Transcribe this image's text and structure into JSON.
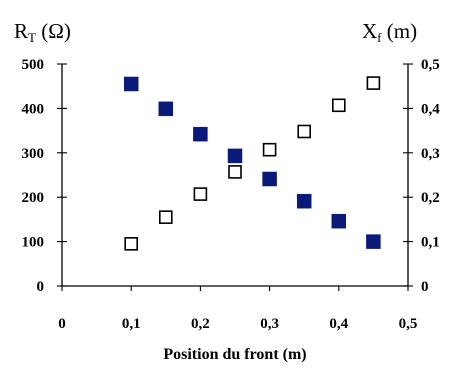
{
  "chart_data": {
    "type": "scatter",
    "title": "",
    "xlabel": "Position du front (m)",
    "ylabel_left": {
      "main": "R",
      "sub": "T",
      "unit": " (Ω)"
    },
    "ylabel_right": {
      "main": "X",
      "sub": "f",
      "unit": " (m)"
    },
    "xlim": [
      0,
      0.5
    ],
    "ylim_left": [
      0,
      500
    ],
    "ylim_right": [
      0,
      0.5
    ],
    "x_ticks": [
      {
        "value": 0,
        "label": "0"
      },
      {
        "value": 0.1,
        "label": "0,1"
      },
      {
        "value": 0.2,
        "label": "0,2"
      },
      {
        "value": 0.3,
        "label": "0,3"
      },
      {
        "value": 0.4,
        "label": "0,4"
      },
      {
        "value": 0.5,
        "label": "0,5"
      }
    ],
    "y_left_ticks": [
      {
        "value": 0,
        "label": "0"
      },
      {
        "value": 100,
        "label": "100"
      },
      {
        "value": 200,
        "label": "200"
      },
      {
        "value": 300,
        "label": "300"
      },
      {
        "value": 400,
        "label": "400"
      },
      {
        "value": 500,
        "label": "500"
      }
    ],
    "y_right_ticks": [
      {
        "value": 0,
        "label": "0"
      },
      {
        "value": 0.1,
        "label": "0,1"
      },
      {
        "value": 0.2,
        "label": "0,2"
      },
      {
        "value": 0.3,
        "label": "0,3"
      },
      {
        "value": 0.4,
        "label": "0,4"
      },
      {
        "value": 0.5,
        "label": "0,5"
      }
    ],
    "grid": false,
    "legend": "none",
    "series": [
      {
        "axis": "left",
        "marker": "filled-square",
        "color": "#0a1a78",
        "x": [
          0.1,
          0.15,
          0.2,
          0.25,
          0.3,
          0.35,
          0.4,
          0.45
        ],
        "y": [
          455,
          399,
          342,
          293,
          241,
          191,
          146,
          100
        ]
      },
      {
        "axis": "right",
        "marker": "open-square",
        "color": "#000000",
        "x": [
          0.1,
          0.15,
          0.2,
          0.25,
          0.3,
          0.35,
          0.4,
          0.45
        ],
        "y": [
          0.095,
          0.155,
          0.207,
          0.257,
          0.307,
          0.348,
          0.407,
          0.457
        ]
      }
    ]
  }
}
